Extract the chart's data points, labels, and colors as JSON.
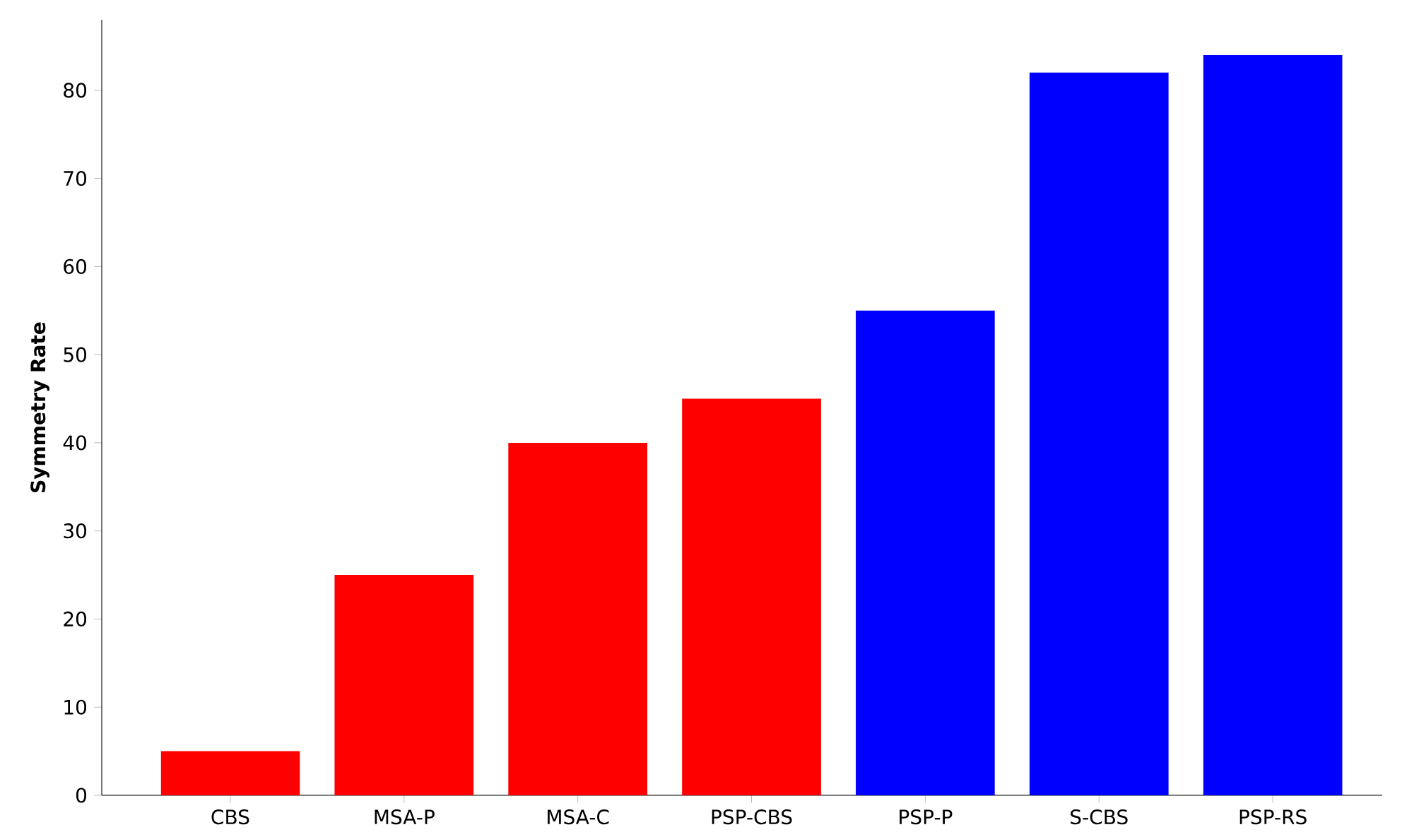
{
  "chart_data": {
    "type": "bar",
    "ylabel": "Symmetry Rate",
    "categories": [
      "CBS",
      "MSA-P",
      "MSA-C",
      "PSP-CBS",
      "PSP-P",
      "S-CBS",
      "PSP-RS"
    ],
    "values": [
      5,
      25,
      40,
      45,
      55,
      82,
      84
    ],
    "colors": [
      "#ff0000",
      "#ff0000",
      "#ff0000",
      "#ff0000",
      "#0000ff",
      "#0000ff",
      "#0000ff"
    ],
    "ylim": [
      0,
      88
    ],
    "yticks": [
      0,
      10,
      20,
      30,
      40,
      50,
      60,
      70,
      80
    ],
    "grid": false
  }
}
